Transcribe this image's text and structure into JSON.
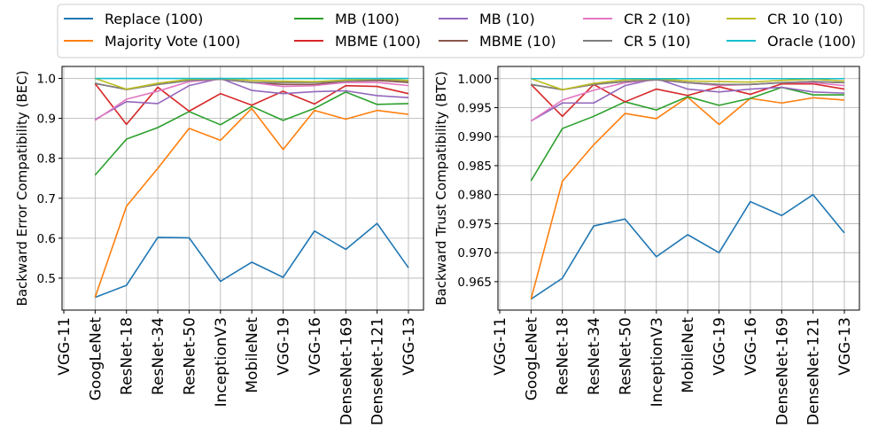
{
  "legend": {
    "entries": [
      {
        "label": "Replace (100)",
        "color": "#1f77b4"
      },
      {
        "label": "Majority Vote (100)",
        "color": "#ff7f0e"
      },
      {
        "label": "MB (100)",
        "color": "#2ca02c"
      },
      {
        "label": "MBME (100)",
        "color": "#d62728"
      },
      {
        "label": "MB (10)",
        "color": "#9467bd"
      },
      {
        "label": "MBME (10)",
        "color": "#8c564b"
      },
      {
        "label": "CR 2 (10)",
        "color": "#e377c2"
      },
      {
        "label": "CR 5 (10)",
        "color": "#7f7f7f"
      },
      {
        "label": "CR 10 (10)",
        "color": "#bcbd22"
      },
      {
        "label": "Oracle (100)",
        "color": "#17becf"
      }
    ]
  },
  "chart_data": [
    {
      "type": "line",
      "title": "",
      "xlabel": "",
      "ylabel": "Backward Error Compatibility (BEC)",
      "categories": [
        "VGG-11",
        "GoogLeNet",
        "ResNet-18",
        "ResNet-34",
        "ResNet-50",
        "InceptionV3",
        "MobileNet",
        "VGG-19",
        "VGG-16",
        "DenseNet-169",
        "DenseNet-121",
        "VGG-13"
      ],
      "ylim": [
        0.42,
        1.03
      ],
      "yticks": [
        0.5,
        0.6,
        0.7,
        0.8,
        0.9,
        1.0
      ],
      "ytick_labels": [
        "0.5",
        "0.6",
        "0.7",
        "0.8",
        "0.9",
        "1.0"
      ],
      "grid": true,
      "series": [
        {
          "name": "Replace (100)",
          "values": [
            null,
            0.452,
            0.482,
            0.602,
            0.601,
            0.492,
            0.54,
            0.502,
            0.618,
            0.572,
            0.637,
            0.526
          ]
        },
        {
          "name": "Majority Vote (100)",
          "values": [
            null,
            0.452,
            0.68,
            0.775,
            0.875,
            0.845,
            0.925,
            0.822,
            0.92,
            0.898,
            0.92,
            0.91
          ]
        },
        {
          "name": "MB (100)",
          "values": [
            null,
            0.758,
            0.848,
            0.877,
            0.917,
            0.884,
            0.93,
            0.895,
            0.925,
            0.966,
            0.935,
            0.937
          ]
        },
        {
          "name": "MBME (100)",
          "values": [
            null,
            0.987,
            0.885,
            0.978,
            0.918,
            0.962,
            0.933,
            0.968,
            0.936,
            0.982,
            0.98,
            0.962
          ]
        },
        {
          "name": "MB (10)",
          "values": [
            null,
            0.897,
            0.942,
            0.937,
            0.982,
            1.0,
            0.97,
            0.962,
            0.967,
            0.969,
            0.957,
            0.952
          ]
        },
        {
          "name": "MBME (10)",
          "values": [
            null,
            0.987,
            0.973,
            0.985,
            0.995,
            0.998,
            0.99,
            0.985,
            0.985,
            0.993,
            0.995,
            0.99
          ]
        },
        {
          "name": "CR 2 (10)",
          "values": [
            null,
            0.895,
            0.948,
            0.968,
            0.992,
            0.998,
            0.99,
            0.98,
            0.982,
            0.99,
            0.99,
            0.982
          ]
        },
        {
          "name": "CR 5 (10)",
          "values": [
            null,
            0.988,
            0.972,
            0.985,
            0.995,
            0.998,
            0.99,
            0.99,
            0.99,
            0.993,
            0.998,
            0.993
          ]
        },
        {
          "name": "CR 10 (10)",
          "values": [
            null,
            1.0,
            0.973,
            0.988,
            0.998,
            1.0,
            0.995,
            0.993,
            0.992,
            0.996,
            0.999,
            0.995
          ]
        },
        {
          "name": "Oracle (100)",
          "values": [
            null,
            1.0,
            1.0,
            1.0,
            1.0,
            1.0,
            1.0,
            1.0,
            1.0,
            1.0,
            1.0,
            1.0
          ]
        }
      ]
    },
    {
      "type": "line",
      "title": "",
      "xlabel": "",
      "ylabel": "Backward Trust Compatibility (BTC)",
      "categories": [
        "VGG-11",
        "GoogLeNet",
        "ResNet-18",
        "ResNet-34",
        "ResNet-50",
        "InceptionV3",
        "MobileNet",
        "VGG-19",
        "VGG-16",
        "DenseNet-169",
        "DenseNet-121",
        "VGG-13"
      ],
      "ylim": [
        0.9601,
        1.0021
      ],
      "yticks": [
        0.965,
        0.97,
        0.975,
        0.98,
        0.985,
        0.99,
        0.995,
        1.0
      ],
      "ytick_labels": [
        "0.965",
        "0.970",
        "0.975",
        "0.980",
        "0.985",
        "0.990",
        "0.995",
        "1.000"
      ],
      "grid": true,
      "series": [
        {
          "name": "Replace (100)",
          "values": [
            null,
            0.962,
            0.9656,
            0.9746,
            0.9758,
            0.9693,
            0.9731,
            0.97,
            0.9788,
            0.9764,
            0.98,
            0.9734
          ]
        },
        {
          "name": "Majority Vote (100)",
          "values": [
            null,
            0.962,
            0.9823,
            0.9886,
            0.994,
            0.9931,
            0.9968,
            0.9921,
            0.9966,
            0.9958,
            0.9967,
            0.9963
          ]
        },
        {
          "name": "MB (100)",
          "values": [
            null,
            0.9824,
            0.9914,
            0.9935,
            0.996,
            0.9946,
            0.9969,
            0.9954,
            0.9966,
            0.9985,
            0.9972,
            0.9972
          ]
        },
        {
          "name": "MBME (100)",
          "values": [
            null,
            0.999,
            0.9935,
            0.999,
            0.996,
            0.9982,
            0.9971,
            0.9986,
            0.9973,
            0.9991,
            0.9991,
            0.9982
          ]
        },
        {
          "name": "MB (10)",
          "values": [
            null,
            0.9927,
            0.9958,
            0.9958,
            0.9988,
            1.0,
            0.9982,
            0.9977,
            0.9982,
            0.9985,
            0.9977,
            0.9975
          ]
        },
        {
          "name": "MBME (10)",
          "values": [
            null,
            0.999,
            0.9981,
            0.999,
            0.9995,
            0.9998,
            0.9993,
            0.999,
            0.999,
            0.9993,
            0.9995,
            0.9993
          ]
        },
        {
          "name": "CR 2 (10)",
          "values": [
            null,
            0.9927,
            0.9963,
            0.998,
            0.9993,
            0.9998,
            0.9993,
            0.9988,
            0.999,
            0.9993,
            0.9993,
            0.9988
          ]
        },
        {
          "name": "CR 5 (10)",
          "values": [
            null,
            0.999,
            0.9981,
            0.999,
            0.9995,
            0.9998,
            0.9993,
            0.999,
            0.999,
            0.9993,
            0.9995,
            0.9993
          ]
        },
        {
          "name": "CR 10 (10)",
          "values": [
            null,
            1.0,
            0.9981,
            0.9992,
            0.9998,
            1.0,
            0.9996,
            0.9995,
            0.9994,
            0.9997,
            0.9999,
            0.9996
          ]
        },
        {
          "name": "Oracle (100)",
          "values": [
            null,
            1.0,
            1.0,
            1.0,
            1.0,
            1.0,
            1.0,
            1.0,
            1.0,
            1.0,
            1.0,
            1.0
          ]
        }
      ]
    }
  ]
}
